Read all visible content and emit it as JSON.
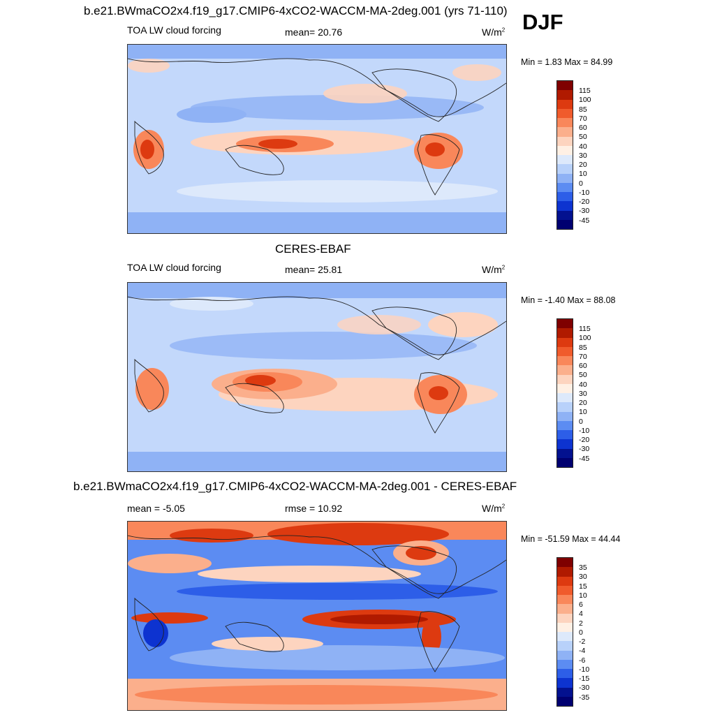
{
  "season": "DJF",
  "panels": [
    {
      "title": "b.e21.BWmaCO2x4.f19_g17.CMIP6-4xCO2-WACCM-MA-2deg.001 (yrs 71-110)",
      "left_label": "TOA LW cloud forcing",
      "center_label": "mean=  20.76",
      "units": "W/m",
      "units_sup": "2",
      "minmax": "Min =   1.83 Max =  84.99",
      "colorbar": [
        "115",
        "100",
        "85",
        "70",
        "60",
        "50",
        "40",
        "30",
        "20",
        "10",
        "0",
        "-10",
        "-20",
        "-30",
        "-45"
      ],
      "colors": [
        "#7f0000",
        "#b01a00",
        "#dd3a10",
        "#f05b2c",
        "#f9875a",
        "#fbaf8c",
        "#fdd4bf",
        "#fff0e4",
        "#dde9fb",
        "#b8d1fa",
        "#8fb2f5",
        "#5c8cf2",
        "#2d5ee8",
        "#0d33d0",
        "#03118f",
        "#000070"
      ]
    },
    {
      "title": "CERES-EBAF",
      "left_label": "TOA LW cloud forcing",
      "center_label": "mean=  25.81",
      "units": "W/m",
      "units_sup": "2",
      "minmax": "Min =  -1.40 Max =  88.08",
      "colorbar": [
        "115",
        "100",
        "85",
        "70",
        "60",
        "50",
        "40",
        "30",
        "20",
        "10",
        "0",
        "-10",
        "-20",
        "-30",
        "-45"
      ],
      "colors": [
        "#7f0000",
        "#b01a00",
        "#dd3a10",
        "#f05b2c",
        "#f9875a",
        "#fbaf8c",
        "#fdd4bf",
        "#fff0e4",
        "#dde9fb",
        "#b8d1fa",
        "#8fb2f5",
        "#5c8cf2",
        "#2d5ee8",
        "#0d33d0",
        "#03118f",
        "#000070"
      ]
    },
    {
      "title": "b.e21.BWmaCO2x4.f19_g17.CMIP6-4xCO2-WACCM-MA-2deg.001 - CERES-EBAF",
      "left_label": "mean =  -5.05",
      "center_label": "rmse =  10.92",
      "units": "W/m",
      "units_sup": "2",
      "minmax": "Min = -51.59 Max =  44.44",
      "colorbar": [
        "35",
        "30",
        "15",
        "10",
        "6",
        "4",
        "2",
        "0",
        "-2",
        "-4",
        "-6",
        "-10",
        "-15",
        "-30",
        "-35"
      ],
      "colors": [
        "#7f0000",
        "#b01a00",
        "#dd3a10",
        "#f05b2c",
        "#f9875a",
        "#fbaf8c",
        "#fdd4bf",
        "#fff0e4",
        "#dde9fb",
        "#b8d1fa",
        "#8fb2f5",
        "#5c8cf2",
        "#2d5ee8",
        "#0d33d0",
        "#03118f",
        "#000070"
      ]
    }
  ]
}
